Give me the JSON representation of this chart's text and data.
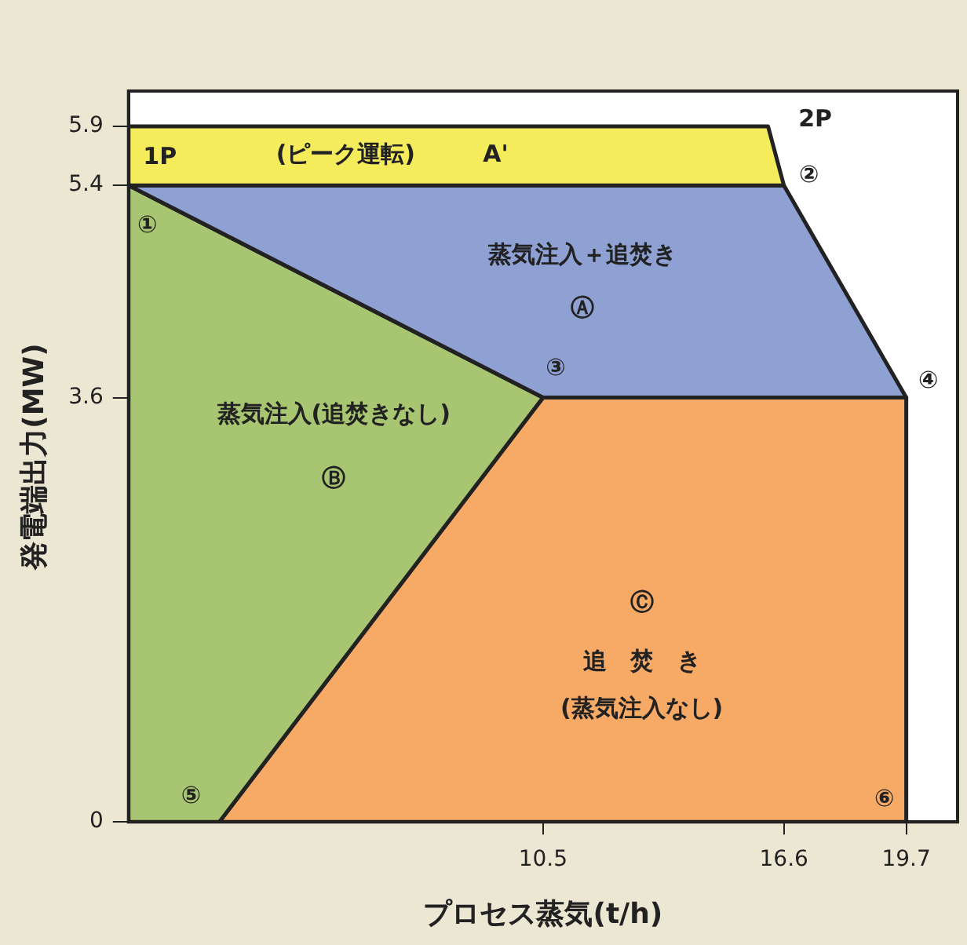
{
  "chart_data": {
    "type": "area",
    "xlabel": "プロセス蒸気(t/h)",
    "ylabel": "発電端出力(MW)",
    "xlim": [
      0,
      21
    ],
    "xticks": [
      10.5,
      16.6,
      19.7
    ],
    "ylim": [
      0,
      6.2
    ],
    "yticks": [
      0,
      3.6,
      5.4,
      5.9
    ],
    "legend": false,
    "marker": "none",
    "line_style": "solid",
    "series": [
      {
        "color": "#f5ec5c",
        "x": [
          0,
          0,
          16.2,
          16.6,
          0
        ],
        "values": [
          5.4,
          5.9,
          5.9,
          5.4,
          5.4
        ]
      },
      {
        "color": "#8fa0d2",
        "x": [
          0,
          16.6,
          19.7,
          10.5,
          0
        ],
        "values": [
          5.4,
          5.4,
          3.6,
          3.6,
          5.4
        ]
      },
      {
        "color": "#a8c572",
        "x": [
          0,
          10.5,
          2.3,
          0,
          0
        ],
        "values": [
          5.4,
          3.6,
          0,
          0,
          5.4
        ]
      },
      {
        "color": "#f6aa66",
        "x": [
          2.3,
          10.5,
          19.7,
          19.7,
          2.3
        ],
        "values": [
          0,
          3.6,
          3.6,
          0,
          0
        ]
      }
    ],
    "annotations": [
      {
        "text": "1P",
        "x": 0,
        "y": 5.9
      },
      "(ピーク運転)",
      "A'",
      {
        "text": "2P",
        "x": 16.2,
        "y": 5.9
      },
      {
        "text": "②",
        "x": 16.6,
        "y": 5.4
      },
      {
        "text": "①",
        "x": 0,
        "y": 5.4
      },
      "蒸気注入＋追焚き",
      "Ⓐ",
      {
        "text": "③",
        "x": 10.5,
        "y": 3.6
      },
      {
        "text": "④",
        "x": 19.7,
        "y": 3.6
      },
      "蒸気注入(追焚きなし)",
      "Ⓑ",
      "Ⓒ",
      "追　焚　き",
      "(蒸気注入なし)",
      {
        "text": "⑤",
        "x": 2.3,
        "y": 0
      },
      {
        "text": "⑥",
        "x": 19.7,
        "y": 0
      }
    ]
  }
}
